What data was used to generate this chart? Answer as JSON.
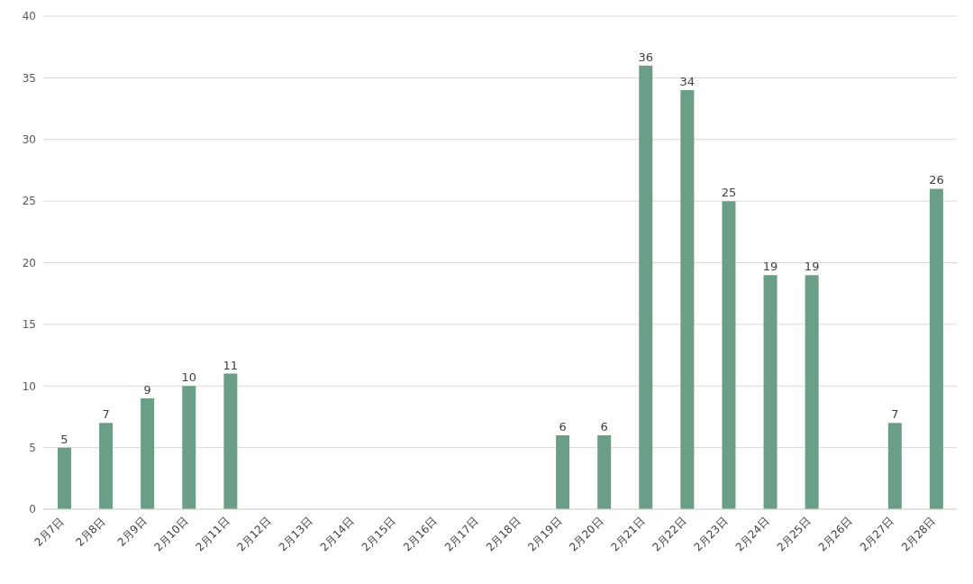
{
  "chart_data": {
    "type": "bar",
    "categories": [
      "2月7日",
      "2月8日",
      "2月9日",
      "2月10日",
      "2月11日",
      "2月12日",
      "2月13日",
      "2月14日",
      "2月15日",
      "2月16日",
      "2月17日",
      "2月18日",
      "2月19日",
      "2月20日",
      "2月21日",
      "2月22日",
      "2月23日",
      "2月24日",
      "2月25日",
      "2月26日",
      "2月27日",
      "2月28日"
    ],
    "values": [
      5,
      7,
      9,
      10,
      11,
      null,
      null,
      null,
      null,
      null,
      null,
      null,
      6,
      6,
      36,
      34,
      25,
      19,
      19,
      null,
      7,
      26
    ],
    "color": "#6b9e86",
    "ylim": [
      0,
      40
    ],
    "yticks": [
      0,
      5,
      10,
      15,
      20,
      25,
      30,
      35,
      40
    ],
    "grid": "y",
    "data_labels": true
  }
}
